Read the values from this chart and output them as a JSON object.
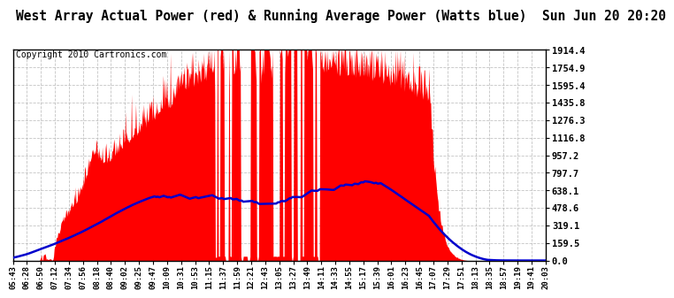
{
  "title": "West Array Actual Power (red) & Running Average Power (Watts blue)  Sun Jun 20 20:20",
  "copyright": "Copyright 2010 Cartronics.com",
  "yticks": [
    0.0,
    159.5,
    319.1,
    478.6,
    638.1,
    797.7,
    957.2,
    1116.8,
    1276.3,
    1435.8,
    1595.4,
    1754.9,
    1914.4
  ],
  "ymax": 1914.4,
  "ymin": 0.0,
  "xtick_labels": [
    "05:43",
    "06:28",
    "06:50",
    "07:12",
    "07:34",
    "07:56",
    "08:18",
    "08:40",
    "09:02",
    "09:25",
    "09:47",
    "10:09",
    "10:31",
    "10:53",
    "11:15",
    "11:37",
    "11:59",
    "12:21",
    "12:43",
    "13:05",
    "13:27",
    "13:49",
    "14:11",
    "14:33",
    "14:55",
    "15:17",
    "15:39",
    "16:01",
    "16:23",
    "16:45",
    "17:07",
    "17:29",
    "17:51",
    "18:13",
    "18:35",
    "18:57",
    "19:19",
    "19:41",
    "20:03"
  ],
  "background_color": "#ffffff",
  "plot_bg_color": "#ffffff",
  "bar_color": "#ff0000",
  "avg_color": "#0000cc",
  "grid_color": "#aaaaaa",
  "title_fontsize": 10.5,
  "copyright_fontsize": 7,
  "title_font": "monospace"
}
